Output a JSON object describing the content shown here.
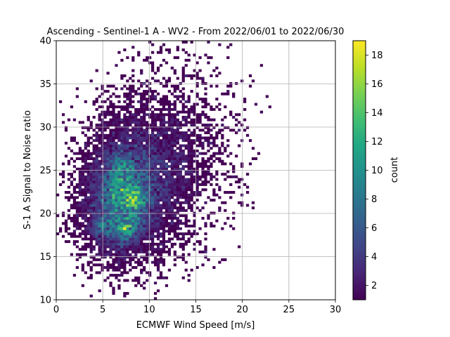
{
  "chart_data": {
    "type": "heatmap",
    "title": "Ascending - Sentinel-1 A - WV2 - From 2022/06/01 to 2022/06/30",
    "xlabel": "ECMWF Wind Speed [m/s]",
    "ylabel": "S-1 A Signal to Noise ratio",
    "xlim": [
      0,
      30
    ],
    "ylim": [
      10,
      40
    ],
    "xticks": [
      "0",
      "5",
      "10",
      "15",
      "20",
      "25",
      "30"
    ],
    "yticks": [
      "10",
      "15",
      "20",
      "25",
      "30",
      "35",
      "40"
    ],
    "grid": true,
    "colormap": "viridis",
    "colorbar": {
      "label": "count",
      "range": [
        1,
        19
      ],
      "ticks": [
        "2",
        "4",
        "6",
        "8",
        "10",
        "12",
        "14",
        "16",
        "18"
      ]
    },
    "bin_size": {
      "x": 0.3,
      "y": 0.3
    },
    "density_model": {
      "description_of_counts": "2D histogram of wind speed vs SNR; peak count about 19 near wind speed 7.4 m/s and SNR 18.3; secondary high-density cores near (8.5, 21.7) and (7, 25.5)",
      "peaks": [
        {
          "x": 7.4,
          "y": 18.3,
          "count": 19
        },
        {
          "x": 8.5,
          "y": 21.7,
          "count": 17
        },
        {
          "x": 6.5,
          "y": 22.5,
          "count": 12
        },
        {
          "x": 7.0,
          "y": 25.5,
          "count": 11
        },
        {
          "x": 5.0,
          "y": 18.5,
          "count": 10
        }
      ]
    }
  }
}
